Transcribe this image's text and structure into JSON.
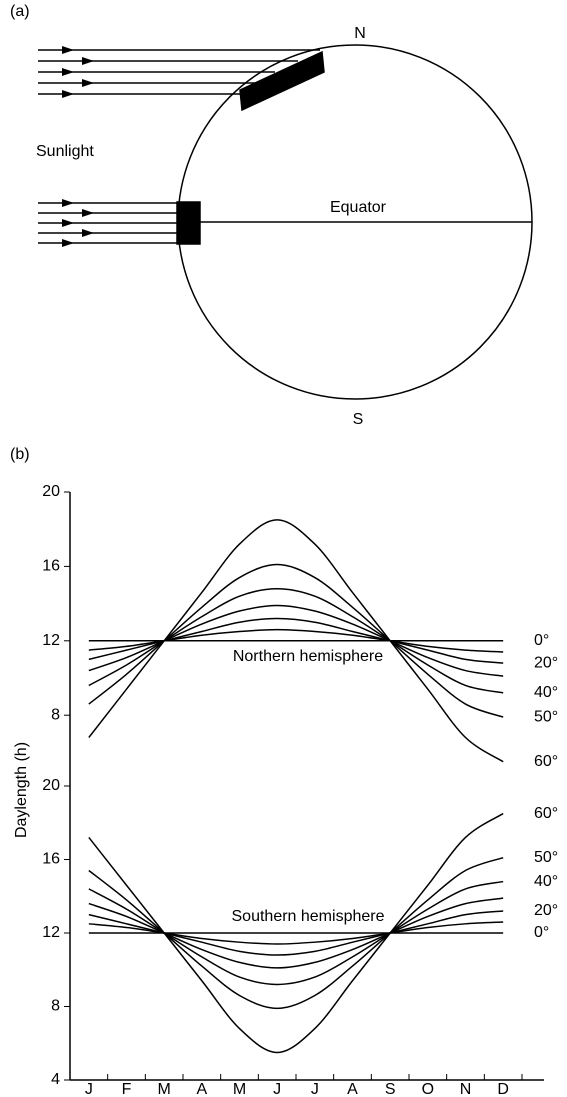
{
  "diagram": {
    "panel_label": "(a)",
    "north": "N",
    "south": "S",
    "sunlight": "Sunlight",
    "equator": "Equator"
  },
  "chart_data": {
    "type": "line",
    "panel_label": "(b)",
    "ylabel": "Daylength (h)",
    "categories": [
      "J",
      "F",
      "M",
      "A",
      "M",
      "J",
      "J",
      "A",
      "S",
      "O",
      "N",
      "D"
    ],
    "panels": [
      {
        "label": "Northern hemisphere",
        "ylim": [
          5,
          20
        ],
        "yticks": [
          8,
          12,
          16,
          20
        ],
        "series": [
          {
            "name": "0°",
            "color": "#000000",
            "values": [
              12,
              12,
              12,
              12,
              12,
              12,
              12,
              12,
              12,
              12,
              12,
              12
            ]
          },
          {
            "color": "#000000",
            "values": [
              11.5,
              11.7,
              12,
              12.3,
              12.5,
              12.6,
              12.5,
              12.3,
              12,
              11.7,
              11.5,
              11.4
            ]
          },
          {
            "name": "20°",
            "color": "#000000",
            "values": [
              11.0,
              11.5,
              12,
              12.5,
              13.0,
              13.2,
              13.0,
              12.5,
              12,
              11.5,
              11.0,
              10.8
            ]
          },
          {
            "color": "#000000",
            "values": [
              10.4,
              11.1,
              12,
              12.9,
              13.6,
              13.9,
              13.6,
              12.9,
              12,
              11.1,
              10.4,
              10.1
            ]
          },
          {
            "name": "40°",
            "color": "#000000",
            "values": [
              9.6,
              10.7,
              12,
              13.3,
              14.4,
              14.8,
              14.4,
              13.3,
              12,
              10.7,
              9.6,
              9.2
            ]
          },
          {
            "name": "50°",
            "color": "#000000",
            "values": [
              8.6,
              10.2,
              12,
              13.8,
              15.4,
              16.1,
              15.4,
              13.8,
              12,
              10.2,
              8.6,
              7.9
            ]
          },
          {
            "name": "60°",
            "color": "#000000",
            "values": [
              6.8,
              9.4,
              12,
              14.6,
              17.2,
              18.5,
              17.2,
              14.6,
              12,
              9.4,
              6.8,
              5.5
            ]
          }
        ]
      },
      {
        "label": "Southern hemisphere",
        "ylim": [
          4,
          20
        ],
        "yticks": [
          4,
          8,
          12,
          16,
          20
        ],
        "series": [
          {
            "name": "0°",
            "color": "#000000",
            "values": [
              12,
              12,
              12,
              12,
              12,
              12,
              12,
              12,
              12,
              12,
              12,
              12
            ]
          },
          {
            "color": "#000000",
            "values": [
              12.5,
              12.3,
              12,
              11.7,
              11.5,
              11.4,
              11.5,
              11.7,
              12,
              12.3,
              12.5,
              12.6
            ]
          },
          {
            "name": "20°",
            "color": "#000000",
            "values": [
              13.0,
              12.5,
              12,
              11.5,
              11.0,
              10.8,
              11.0,
              11.5,
              12,
              12.5,
              13.0,
              13.2
            ]
          },
          {
            "color": "#000000",
            "values": [
              13.6,
              12.9,
              12,
              11.1,
              10.4,
              10.1,
              10.4,
              11.1,
              12,
              12.9,
              13.6,
              13.9
            ]
          },
          {
            "name": "40°",
            "color": "#000000",
            "values": [
              14.4,
              13.3,
              12,
              10.7,
              9.6,
              9.2,
              9.6,
              10.7,
              12,
              13.3,
              14.4,
              14.8
            ]
          },
          {
            "name": "50°",
            "color": "#000000",
            "values": [
              15.4,
              13.8,
              12,
              10.2,
              8.6,
              7.9,
              8.6,
              10.2,
              12,
              13.8,
              15.4,
              16.1
            ]
          },
          {
            "name": "60°",
            "color": "#000000",
            "values": [
              17.2,
              14.6,
              12,
              9.4,
              6.8,
              5.5,
              6.8,
              9.4,
              12,
              14.6,
              17.2,
              18.5
            ]
          }
        ]
      }
    ]
  }
}
